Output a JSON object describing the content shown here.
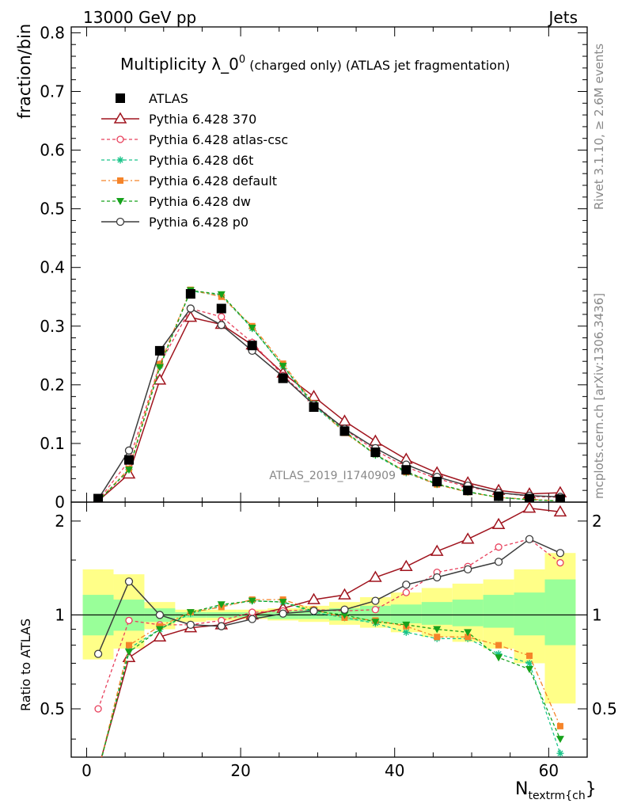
{
  "header": {
    "left": "13000 GeV pp",
    "right": "Jets"
  },
  "title": {
    "main": "Multiplicity λ_0",
    "sup": "0",
    "rest": " (charged only) (ATLAS jet fragmentation)"
  },
  "ylabel_main": "fraction/bin",
  "ylabel_ratio": "Ratio to ATLAS",
  "xlabel": {
    "main": "N",
    "sub": "textrm{ch",
    "tail": "}"
  },
  "side_label_top": "Rivet 3.1.10, ≥ 2.6M events",
  "side_label_bottom": "mcplots.cern.ch [arXiv:1306.3436]",
  "watermark": "ATLAS_2019_I1740909",
  "colors": {
    "atlas": "#000000",
    "p370": "#a0141e",
    "atlascsc": "#e8405c",
    "d6t": "#1bc48a",
    "default": "#f5842a",
    "dw": "#16a21b",
    "p0": "#3c3c3c",
    "band_inner": "#99ff99",
    "band_outer": "#ffff88"
  },
  "chart_data": [
    {
      "type": "line",
      "panel": "main",
      "xlim": [
        -2,
        65
      ],
      "ylim": [
        0,
        0.81
      ],
      "xticks": [
        0,
        20,
        40,
        60
      ],
      "yticks": [
        0,
        0.1,
        0.2,
        0.3,
        0.4,
        0.5,
        0.6,
        0.7,
        0.8
      ],
      "ytick_labels": [
        "0",
        "0.1",
        "0.2",
        "0.3",
        "0.4",
        "0.5",
        "0.6",
        "0.7",
        "0.8"
      ],
      "x": [
        1.5,
        5.5,
        9.5,
        13.5,
        17.5,
        21.5,
        25.5,
        29.5,
        33.5,
        37.5,
        41.5,
        45.5,
        49.5,
        53.5,
        57.5,
        61.5
      ],
      "series": [
        {
          "name": "ATLAS",
          "key": "atlas",
          "values": [
            0.006,
            0.072,
            0.258,
            0.355,
            0.33,
            0.267,
            0.211,
            0.162,
            0.121,
            0.085,
            0.055,
            0.035,
            0.02,
            0.01,
            0.006,
            0.005
          ]
        },
        {
          "name": "Pythia 6.428 370",
          "key": "p370",
          "values": [
            0.002,
            0.048,
            0.208,
            0.315,
            0.303,
            0.268,
            0.22,
            0.18,
            0.138,
            0.104,
            0.073,
            0.05,
            0.033,
            0.02,
            0.014,
            0.016
          ]
        },
        {
          "name": "Pythia 6.428 atlas-csc",
          "key": "atlascsc",
          "values": [
            0.003,
            0.07,
            0.235,
            0.33,
            0.316,
            0.272,
            0.216,
            0.168,
            0.124,
            0.088,
            0.06,
            0.04,
            0.026,
            0.016,
            0.01,
            0.008
          ]
        },
        {
          "name": "Pythia 6.428 d6t",
          "key": "d6t",
          "values": [
            0.002,
            0.056,
            0.232,
            0.36,
            0.352,
            0.296,
            0.232,
            0.164,
            0.12,
            0.08,
            0.05,
            0.03,
            0.017,
            0.008,
            0.004,
            0.002
          ]
        },
        {
          "name": "Pythia 6.428 default",
          "key": "default",
          "values": [
            0.002,
            0.057,
            0.235,
            0.362,
            0.35,
            0.3,
            0.236,
            0.168,
            0.118,
            0.082,
            0.051,
            0.03,
            0.017,
            0.008,
            0.005,
            0.002
          ]
        },
        {
          "name": "Pythia 6.428 dw",
          "key": "dw",
          "values": [
            0.002,
            0.055,
            0.23,
            0.361,
            0.354,
            0.297,
            0.232,
            0.167,
            0.121,
            0.081,
            0.052,
            0.031,
            0.018,
            0.008,
            0.004,
            0.002
          ]
        },
        {
          "name": "Pythia 6.428 p0",
          "key": "p0",
          "values": [
            0.005,
            0.088,
            0.258,
            0.33,
            0.302,
            0.258,
            0.214,
            0.166,
            0.125,
            0.092,
            0.064,
            0.043,
            0.028,
            0.016,
            0.011,
            0.009
          ]
        }
      ]
    },
    {
      "type": "line",
      "panel": "ratio",
      "xlim": [
        -2,
        65
      ],
      "ylim": [
        0.35,
        2.3
      ],
      "xticks": [
        0,
        20,
        40,
        60
      ],
      "xtick_labels": [
        "0",
        "20",
        "40",
        "60"
      ],
      "yticks": [
        0.5,
        1,
        2
      ],
      "ytick_labels": [
        "0.5",
        "1",
        "2"
      ],
      "x": [
        1.5,
        5.5,
        9.5,
        13.5,
        17.5,
        21.5,
        25.5,
        29.5,
        33.5,
        37.5,
        41.5,
        45.5,
        49.5,
        53.5,
        57.5,
        61.5
      ],
      "band_edges": [
        -0.5,
        3.5,
        7.5,
        11.5,
        15.5,
        19.5,
        23.5,
        27.5,
        31.5,
        35.5,
        39.5,
        43.5,
        47.5,
        51.5,
        55.5,
        59.5,
        63.5
      ],
      "band_inner": [
        [
          0.86,
          1.16
        ],
        [
          0.89,
          1.12
        ],
        [
          0.95,
          1.05
        ],
        [
          0.98,
          1.02
        ],
        [
          0.98,
          1.02
        ],
        [
          0.98,
          1.02
        ],
        [
          0.97,
          1.03
        ],
        [
          0.97,
          1.04
        ],
        [
          0.96,
          1.05
        ],
        [
          0.95,
          1.07
        ],
        [
          0.94,
          1.08
        ],
        [
          0.93,
          1.1
        ],
        [
          0.92,
          1.12
        ],
        [
          0.91,
          1.16
        ],
        [
          0.86,
          1.18
        ],
        [
          0.8,
          1.3
        ]
      ],
      "band_outer": [
        [
          0.72,
          1.4
        ],
        [
          0.78,
          1.35
        ],
        [
          0.9,
          1.1
        ],
        [
          0.95,
          1.04
        ],
        [
          0.96,
          1.04
        ],
        [
          0.97,
          1.04
        ],
        [
          0.96,
          1.05
        ],
        [
          0.95,
          1.07
        ],
        [
          0.93,
          1.1
        ],
        [
          0.91,
          1.14
        ],
        [
          0.88,
          1.18
        ],
        [
          0.85,
          1.22
        ],
        [
          0.82,
          1.26
        ],
        [
          0.78,
          1.3
        ],
        [
          0.7,
          1.4
        ],
        [
          0.52,
          1.58
        ]
      ],
      "series": [
        {
          "name": "Pythia 6.428 370",
          "key": "p370",
          "values": [
            0.32,
            0.73,
            0.85,
            0.91,
            0.93,
            1.0,
            1.05,
            1.12,
            1.16,
            1.32,
            1.43,
            1.6,
            1.75,
            1.95,
            2.2,
            2.14
          ]
        },
        {
          "name": "Pythia 6.428 atlas-csc",
          "key": "atlascsc",
          "values": [
            0.5,
            0.96,
            0.93,
            0.93,
            0.96,
            1.02,
            1.03,
            1.04,
            1.03,
            1.04,
            1.18,
            1.37,
            1.43,
            1.65,
            1.75,
            1.47
          ]
        },
        {
          "name": "Pythia 6.428 d6t",
          "key": "d6t",
          "values": [
            0.3,
            0.78,
            0.9,
            1.01,
            1.07,
            1.11,
            1.1,
            1.02,
            0.98,
            0.94,
            0.88,
            0.84,
            0.84,
            0.75,
            0.7,
            0.36
          ]
        },
        {
          "name": "Pythia 6.428 default",
          "key": "default",
          "values": [
            0.3,
            0.8,
            0.92,
            1.02,
            1.06,
            1.12,
            1.12,
            1.04,
            0.98,
            0.96,
            0.92,
            0.85,
            0.85,
            0.8,
            0.74,
            0.44
          ]
        },
        {
          "name": "Pythia 6.428 dw",
          "key": "dw",
          "values": [
            0.3,
            0.76,
            0.9,
            1.02,
            1.08,
            1.11,
            1.1,
            1.03,
            1.0,
            0.95,
            0.93,
            0.9,
            0.88,
            0.73,
            0.67,
            0.4
          ]
        },
        {
          "name": "Pythia 6.428 p0",
          "key": "p0",
          "values": [
            0.75,
            1.28,
            1.0,
            0.93,
            0.92,
            0.97,
            1.01,
            1.03,
            1.04,
            1.11,
            1.25,
            1.32,
            1.4,
            1.48,
            1.75,
            1.58
          ]
        }
      ]
    }
  ]
}
